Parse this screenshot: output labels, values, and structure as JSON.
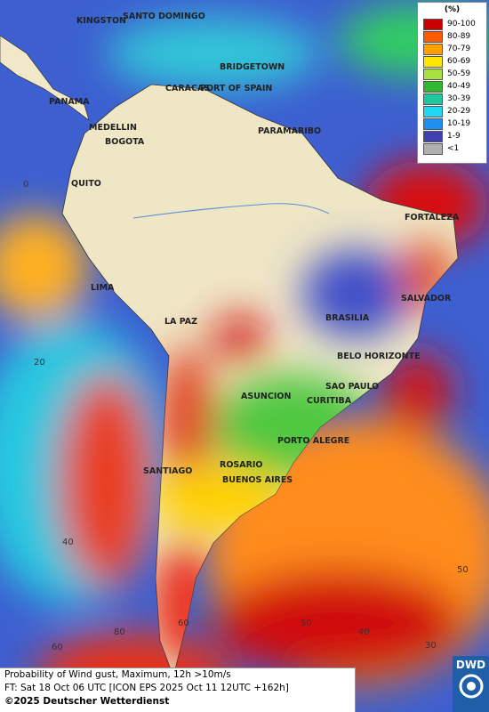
{
  "cities": [
    "KINGSTON",
    "SANTO DOMINGO",
    "BRIDGETOWN",
    "CARACAS",
    "PORT OF SPAIN",
    "PANAMA",
    "MEDELLIN",
    "BOGOTA",
    "PARAMARIBO",
    "QUITO",
    "FORTALEZA",
    "LIMA",
    "SALVADOR",
    "LA PAZ",
    "BRASILIA",
    "BELO HORIZONTE",
    "SAO PAULO",
    "ASUNCION",
    "CURITIBA",
    "PORTO ALEGRE",
    "SANTIAGO",
    "ROSARIO",
    "BUENOS AIRES"
  ],
  "grid_labels": [
    "0",
    "20",
    "40",
    "60",
    "80",
    "60",
    "50",
    "40",
    "30",
    "50"
  ],
  "legend": {
    "title": "(%)",
    "items": [
      {
        "label": "90-100",
        "color": "#c80000"
      },
      {
        "label": "80-89",
        "color": "#ff5a00"
      },
      {
        "label": "70-79",
        "color": "#ffa000"
      },
      {
        "label": "60-69",
        "color": "#ffe600"
      },
      {
        "label": "50-59",
        "color": "#a8e040"
      },
      {
        "label": "40-49",
        "color": "#30b830"
      },
      {
        "label": "30-39",
        "color": "#20c8a0"
      },
      {
        "label": "20-29",
        "color": "#20d8f0"
      },
      {
        "label": "10-19",
        "color": "#2090f0"
      },
      {
        "label": "1-9",
        "color": "#4040b0"
      },
      {
        "label": "<1",
        "color": "#b0b0b0"
      }
    ]
  },
  "footer": {
    "product": "Probability of Wind gust, Maximum, 12h >10m/s",
    "forecast": "FT: Sat 18 Oct 06 UTC [ICON EPS 2025 Oct 11 12UTC +162h]",
    "copyright": "©2025 Deutscher Wetterdienst"
  },
  "logo": "DWD"
}
